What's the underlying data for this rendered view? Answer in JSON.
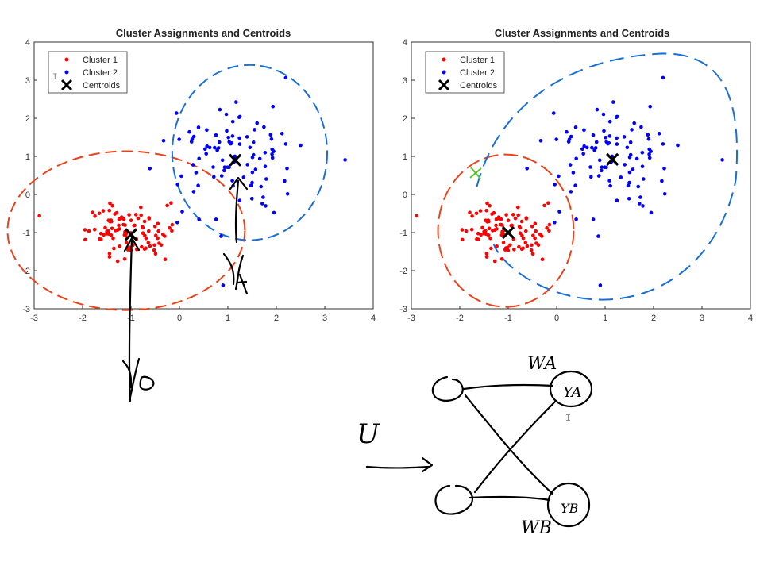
{
  "chart_data": [
    {
      "type": "scatter",
      "title": "Cluster Assignments and Centroids",
      "xlim": [
        -3,
        4
      ],
      "ylim": [
        -3,
        4
      ],
      "xticks": [
        "-3",
        "-2",
        "-1",
        "0",
        "1",
        "2",
        "3",
        "4"
      ],
      "yticks": [
        "-3",
        "-2",
        "-1",
        "0",
        "1",
        "2",
        "3",
        "4"
      ],
      "legend": {
        "placement": "top-left",
        "entries": [
          "Cluster 1",
          "Cluster 2",
          "Centroids"
        ]
      },
      "colors": {
        "cluster1": "#ff0000",
        "cluster2": "#0000ff",
        "centroid": "#000000",
        "red_outline": "#e8431a",
        "blue_outline": "#1a6fd6"
      },
      "series": [
        {
          "name": "Cluster 1",
          "center": [
            -1,
            -1
          ],
          "spread": [
            0.45,
            0.35
          ],
          "count": 100
        },
        {
          "name": "Cluster 2",
          "center": [
            1.1,
            0.9
          ],
          "spread": [
            0.7,
            0.75
          ],
          "count": 100
        },
        {
          "name": "Centroids",
          "points": [
            [
              -1.0,
              -1.05
            ],
            [
              1.15,
              0.9
            ]
          ]
        }
      ],
      "annotations": [
        "Y_A",
        "Y_B"
      ]
    },
    {
      "type": "scatter",
      "title": "Cluster Assignments and Centroids",
      "xlim": [
        -3,
        4
      ],
      "ylim": [
        -3,
        4
      ],
      "xticks": [
        "-3",
        "-2",
        "-1",
        "0",
        "1",
        "2",
        "3",
        "4"
      ],
      "yticks": [
        "-3",
        "-2",
        "-1",
        "0",
        "1",
        "2",
        "3",
        "4"
      ],
      "legend": {
        "placement": "top-left",
        "entries": [
          "Cluster 1",
          "Cluster 2",
          "Centroids"
        ]
      },
      "colors": {
        "cluster1": "#ff0000",
        "cluster2": "#0000ff",
        "centroid": "#000000",
        "red_outline": "#e8431a",
        "blue_outline": "#1a6fd6",
        "marker": "#5cbf2a"
      },
      "series": [
        {
          "name": "Cluster 1",
          "center": [
            -1,
            -1
          ],
          "spread": [
            0.45,
            0.35
          ],
          "count": 100
        },
        {
          "name": "Cluster 2",
          "center": [
            1.1,
            0.9
          ],
          "spread": [
            0.7,
            0.75
          ],
          "count": 100
        },
        {
          "name": "Centroids",
          "points": [
            [
              -1.0,
              -1.0
            ],
            [
              1.15,
              0.92
            ]
          ]
        }
      ]
    }
  ],
  "diagram": {
    "node_labels": [
      "YA",
      "YB"
    ],
    "weight_labels": [
      "WA",
      "WB"
    ],
    "input_label": "U"
  }
}
